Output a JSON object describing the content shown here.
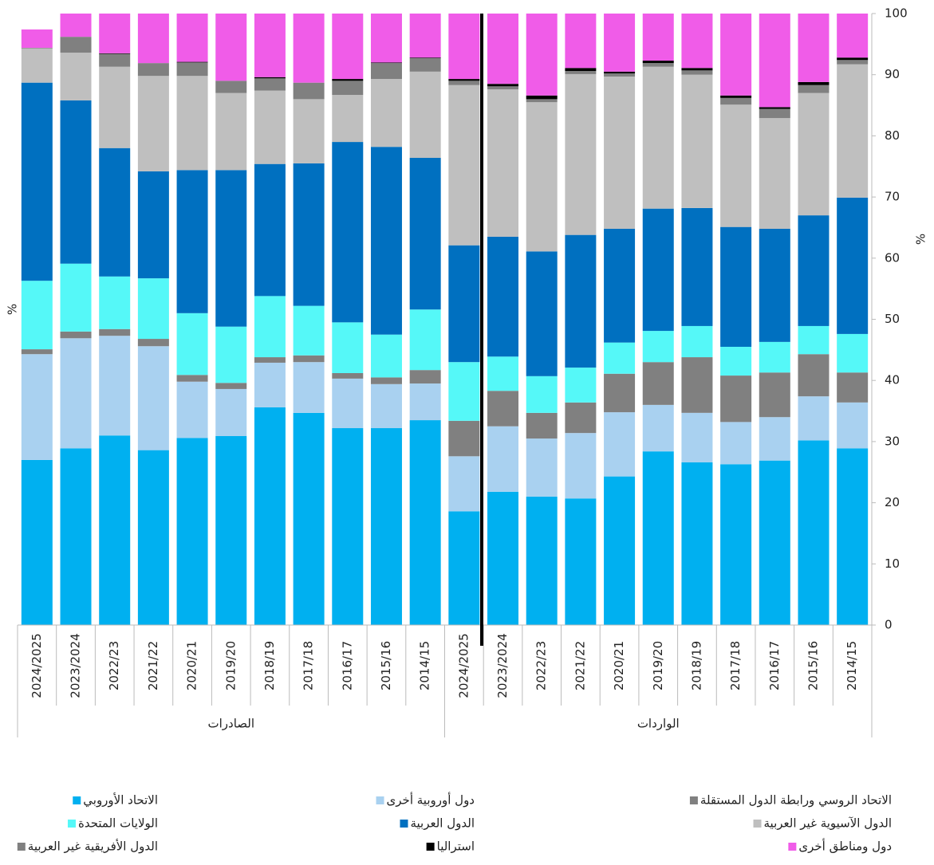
{
  "chart_data": {
    "type": "stacked_bar",
    "categories": [
      "2024/2025",
      "2023/2024",
      "2022/23",
      "2021/22",
      "2020/21",
      "2019/20",
      "2018/19",
      "2017/18",
      "2016/17",
      "2015/16",
      "2014/15",
      "2024/2025",
      "2023/2024",
      "2022/23",
      "2021/22",
      "2020/21",
      "2019/20",
      "2018/19",
      "2017/18",
      "2016/17",
      "2015/16",
      "2014/15"
    ],
    "groups": [
      {
        "label": "الصادرات",
        "span": 11
      },
      {
        "label": "الواردات",
        "span": 11
      }
    ],
    "axis_labels": [
      "%",
      "%"
    ],
    "ylim": [
      0,
      100
    ],
    "yticks": [
      0,
      10,
      20,
      30,
      40,
      50,
      60,
      70,
      80,
      90,
      100
    ],
    "series": [
      {
        "name": "الاتحاد الأوروبي",
        "color": "#00b0f0",
        "values": [
          27,
          28.9,
          31,
          28.6,
          30.6,
          30.9,
          35.6,
          34.7,
          32.2,
          32.2,
          33.5,
          18.6,
          21.8,
          21,
          20.7,
          24.3,
          28.4,
          26.6,
          26.3,
          26.9,
          30.2,
          28.9
        ]
      },
      {
        "name": "دول أوروبية أخرى",
        "color": "#a9d1f0",
        "values": [
          17.3,
          18,
          16.3,
          17,
          9.2,
          7.7,
          7.3,
          8.3,
          8.1,
          7.2,
          6,
          9,
          10.7,
          9.5,
          10.7,
          10.5,
          7.6,
          8.1,
          6.9,
          7.1,
          7.2,
          7.5
        ]
      },
      {
        "name": "الاتحاد الروسي ورابطة الدول المستقلة",
        "color": "#808080",
        "values": [
          0.8,
          1.1,
          1.1,
          1.2,
          1.1,
          1,
          0.9,
          1.1,
          0.9,
          1.1,
          2.2,
          5.8,
          5.8,
          4.2,
          5,
          6.3,
          7,
          9.1,
          7.6,
          7.3,
          6.9,
          4.9
        ]
      },
      {
        "name": "الولايات المتحدة",
        "color": "#55f8f8",
        "values": [
          11.2,
          11.1,
          8.6,
          9.9,
          10.1,
          9.2,
          10,
          8.1,
          8.3,
          7,
          9.9,
          9.6,
          5.6,
          6,
          5.7,
          5.1,
          5.1,
          5.1,
          4.7,
          5,
          4.6,
          6.3
        ]
      },
      {
        "name": "الدول العربية",
        "color": "#0070c0",
        "values": [
          32.4,
          26.7,
          21,
          17.5,
          23.4,
          25.6,
          21.6,
          23.3,
          29.5,
          30.7,
          24.8,
          19.1,
          19.6,
          20.4,
          21.7,
          18.6,
          20,
          19.3,
          19.6,
          18.5,
          18.1,
          22.3
        ]
      },
      {
        "name": "الدول الآسيوية غير العربية",
        "color": "#bfbfbf",
        "values": [
          5.6,
          7.8,
          13.3,
          15.6,
          15.4,
          12.6,
          12,
          10.5,
          7.7,
          11.1,
          14.1,
          26.2,
          24.1,
          24.4,
          26.3,
          24.9,
          23.2,
          21.8,
          20,
          18.1,
          20,
          21.8
        ]
      },
      {
        "name": "الدول الأفريقية غير العربية",
        "color": "#808080",
        "values": [
          0.1,
          2.6,
          2.1,
          2.1,
          2.2,
          2,
          2,
          2.7,
          2.3,
          2.6,
          2.2,
          0.7,
          0.5,
          0.5,
          0.5,
          0.5,
          0.6,
          0.7,
          1.1,
          1.5,
          1.3,
          0.7
        ]
      },
      {
        "name": "استراليا",
        "color": "#000000",
        "values": [
          0,
          0,
          0.1,
          0,
          0.1,
          0,
          0.2,
          0,
          0.3,
          0.1,
          0.1,
          0.3,
          0.4,
          0.6,
          0.5,
          0.3,
          0.4,
          0.4,
          0.4,
          0.3,
          0.5,
          0.4
        ]
      },
      {
        "name": "دول ومناطق أخرى",
        "color": "#f05ce8",
        "values": [
          3,
          3.8,
          6.5,
          8.1,
          7.9,
          11,
          10.4,
          11.3,
          10.7,
          8,
          7.2,
          10.7,
          11.5,
          13.4,
          8.9,
          9.5,
          7.7,
          8.9,
          13.4,
          15.3,
          11.2,
          7.2
        ]
      }
    ]
  }
}
